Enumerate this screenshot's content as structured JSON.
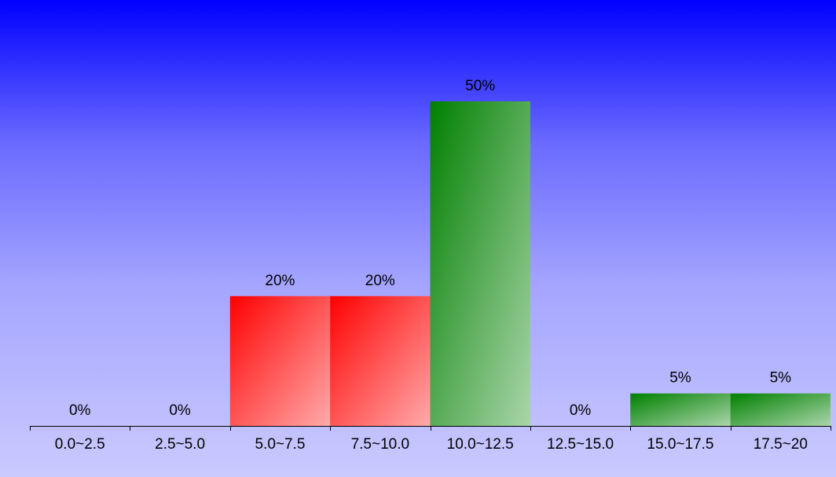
{
  "chart_data": {
    "type": "bar",
    "categories": [
      "0.0~2.5",
      "2.5~5.0",
      "5.0~7.5",
      "7.5~10.0",
      "10.0~12.5",
      "12.5~15.0",
      "15.0~17.5",
      "17.5~20"
    ],
    "values": [
      0,
      0,
      20,
      20,
      50,
      0,
      5,
      5
    ],
    "value_labels": [
      "0%",
      "0%",
      "20%",
      "20%",
      "50%",
      "0%",
      "5%",
      "5%"
    ],
    "bar_colors": [
      "#ff0000",
      "#ff0000",
      "#ff0000",
      "#ff0000",
      "#008000",
      "#008000",
      "#008000",
      "#008000"
    ],
    "bar_gradient_end_colors": [
      "#ffaaaa",
      "#ffaaaa",
      "#ffaaaa",
      "#ffaaaa",
      "#aad5aa",
      "#aad5aa",
      "#aad5aa",
      "#aad5aa"
    ],
    "unit": "%",
    "ylim": [
      0,
      50
    ],
    "grid": false,
    "legend": "none"
  },
  "colors": {
    "background_top": "#0000ff",
    "background_bottom": "#cacaff",
    "axis": "#000000",
    "text": "#000000"
  }
}
